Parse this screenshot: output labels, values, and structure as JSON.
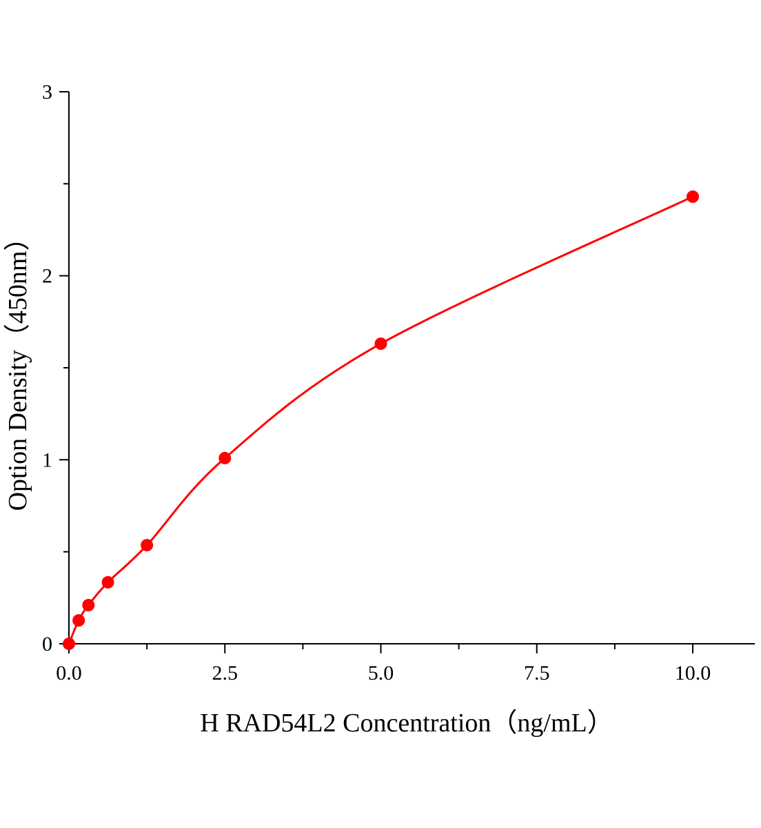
{
  "chart_data": {
    "type": "scatter",
    "title": "",
    "xlabel": "H RAD54L2 Concentration（ng/mL）",
    "ylabel": "Option Density（450nm）",
    "xlim": [
      0,
      11
    ],
    "ylim": [
      0,
      3
    ],
    "x_ticks": [
      0,
      2.5,
      5,
      7.5,
      10
    ],
    "x_tick_labels": [
      "0.0",
      "2.5",
      "5.0",
      "7.5",
      "10.0"
    ],
    "x_minor_ticks": [
      1.25,
      3.75,
      6.25,
      8.75
    ],
    "y_ticks": [
      0,
      1,
      2,
      3
    ],
    "y_tick_labels": [
      "0",
      "1",
      "2",
      "3"
    ],
    "y_minor_ticks": [
      0.5,
      1.5,
      2.5
    ],
    "grid": false,
    "series": [
      {
        "x": [
          0,
          0.156,
          0.3125,
          0.625,
          1.25,
          2.5,
          5,
          10
        ],
        "y": [
          0.0,
          0.127,
          0.21,
          0.334,
          0.536,
          1.009,
          1.631,
          2.43
        ],
        "marker": "circle",
        "fit_line": "smooth curve",
        "color": "#ff0000"
      }
    ]
  }
}
